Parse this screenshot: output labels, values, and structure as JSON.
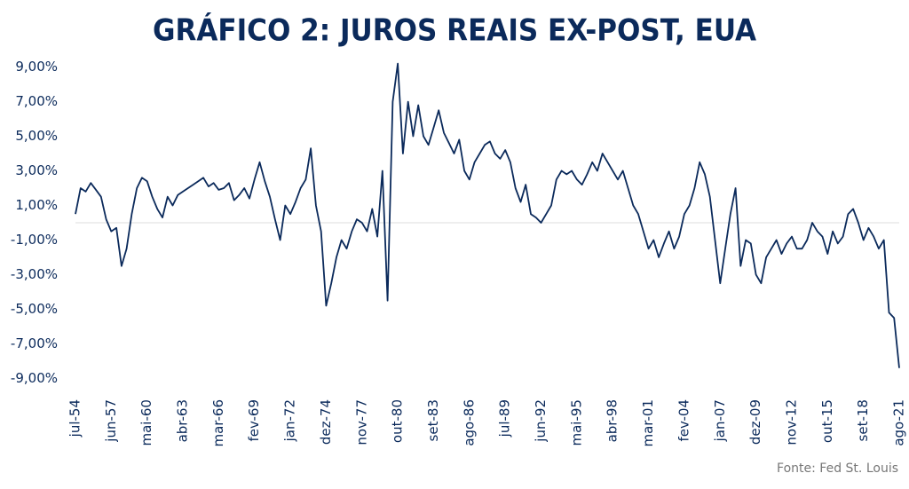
{
  "chart_data": {
    "type": "line",
    "title": "GRÁFICO 2: JUROS REAIS EX-POST, EUA",
    "source": "Fonte: Fed St. Louis",
    "color": "#0b2a5b",
    "categories": [
      "jul-54",
      null,
      null,
      null,
      null,
      null,
      null,
      "jun-57",
      null,
      null,
      null,
      null,
      null,
      null,
      "mai-60",
      null,
      null,
      null,
      null,
      null,
      null,
      "abr-63",
      null,
      null,
      null,
      null,
      null,
      null,
      "mar-66",
      null,
      null,
      null,
      null,
      null,
      null,
      "fev-69",
      null,
      null,
      null,
      null,
      null,
      null,
      "jan-72",
      null,
      null,
      null,
      null,
      null,
      null,
      "dez-74",
      null,
      null,
      null,
      null,
      null,
      null,
      "nov-77",
      null,
      null,
      null,
      null,
      null,
      null,
      "out-80",
      null,
      null,
      null,
      null,
      null,
      null,
      "set-83",
      null,
      null,
      null,
      null,
      null,
      null,
      "ago-86",
      null,
      null,
      null,
      null,
      null,
      null,
      "jul-89",
      null,
      null,
      null,
      null,
      null,
      null,
      "jun-92",
      null,
      null,
      null,
      null,
      null,
      null,
      "mai-95",
      null,
      null,
      null,
      null,
      null,
      null,
      "abr-98",
      null,
      null,
      null,
      null,
      null,
      null,
      "mar-01",
      null,
      null,
      null,
      null,
      null,
      null,
      "fev-04",
      null,
      null,
      null,
      null,
      null,
      null,
      "jan-07",
      null,
      null,
      null,
      null,
      null,
      null,
      "dez-09",
      null,
      null,
      null,
      null,
      null,
      null,
      "nov-12",
      null,
      null,
      null,
      null,
      null,
      null,
      "out-15",
      null,
      null,
      null,
      null,
      null,
      null,
      "set-18",
      null,
      null,
      null,
      null,
      null,
      null,
      "ago-21"
    ],
    "values": [
      0.5,
      2.0,
      1.8,
      2.3,
      1.9,
      1.5,
      0.2,
      -0.5,
      -0.3,
      -2.5,
      -1.5,
      0.5,
      2.0,
      2.6,
      2.4,
      1.5,
      0.8,
      0.3,
      1.5,
      1.0,
      1.6,
      1.8,
      2.0,
      2.2,
      2.4,
      2.6,
      2.1,
      2.3,
      1.9,
      2.0,
      2.3,
      1.3,
      1.6,
      2.0,
      1.4,
      2.5,
      3.5,
      2.4,
      1.5,
      0.2,
      -1.0,
      1.0,
      0.5,
      1.2,
      2.0,
      2.5,
      4.3,
      1.0,
      -0.5,
      -4.8,
      -3.5,
      -2.0,
      -1.0,
      -1.5,
      -0.5,
      0.2,
      0.0,
      -0.5,
      0.8,
      -0.8,
      3.0,
      -4.5,
      7.0,
      9.2,
      4.0,
      7.0,
      5.0,
      6.8,
      5.0,
      4.5,
      5.5,
      6.5,
      5.2,
      4.6,
      4.0,
      4.8,
      3.0,
      2.5,
      3.5,
      4.0,
      4.5,
      4.7,
      4.0,
      3.7,
      4.2,
      3.5,
      2.0,
      1.2,
      2.2,
      0.5,
      0.3,
      0.0,
      0.5,
      1.0,
      2.5,
      3.0,
      2.8,
      3.0,
      2.5,
      2.2,
      2.8,
      3.5,
      3.0,
      4.0,
      3.5,
      3.0,
      2.5,
      3.0,
      2.0,
      1.0,
      0.5,
      -0.5,
      -1.5,
      -1.0,
      -2.0,
      -1.2,
      -0.5,
      -1.5,
      -0.8,
      0.5,
      1.0,
      2.0,
      3.5,
      2.8,
      1.5,
      -1.0,
      -3.5,
      -1.5,
      0.5,
      2.0,
      -2.5,
      -1.0,
      -1.2,
      -3.0,
      -3.5,
      -2.0,
      -1.5,
      -1.0,
      -1.8,
      -1.2,
      -0.8,
      -1.5,
      -1.5,
      -1.0,
      0.0,
      -0.5,
      -0.8,
      -1.8,
      -0.5,
      -1.2,
      -0.8,
      0.5,
      0.8,
      0.0,
      -1.0,
      -0.3,
      -0.8,
      -1.5,
      -1.0,
      -5.2,
      -5.5,
      -8.4
    ],
    "ylim": [
      -9.7,
      9.8
    ],
    "yticks": [
      {
        "value": 9,
        "label": "9,00%"
      },
      {
        "value": 7,
        "label": "7,00%"
      },
      {
        "value": 5,
        "label": "5,00%"
      },
      {
        "value": 3,
        "label": "3,00%"
      },
      {
        "value": 1,
        "label": "1,00%"
      },
      {
        "value": -1,
        "label": "-1,00%"
      },
      {
        "value": -3,
        "label": "-3,00%"
      },
      {
        "value": -5,
        "label": "-5,00%"
      },
      {
        "value": -7,
        "label": "-7,00%"
      },
      {
        "value": -9,
        "label": "-9,00%"
      }
    ]
  }
}
